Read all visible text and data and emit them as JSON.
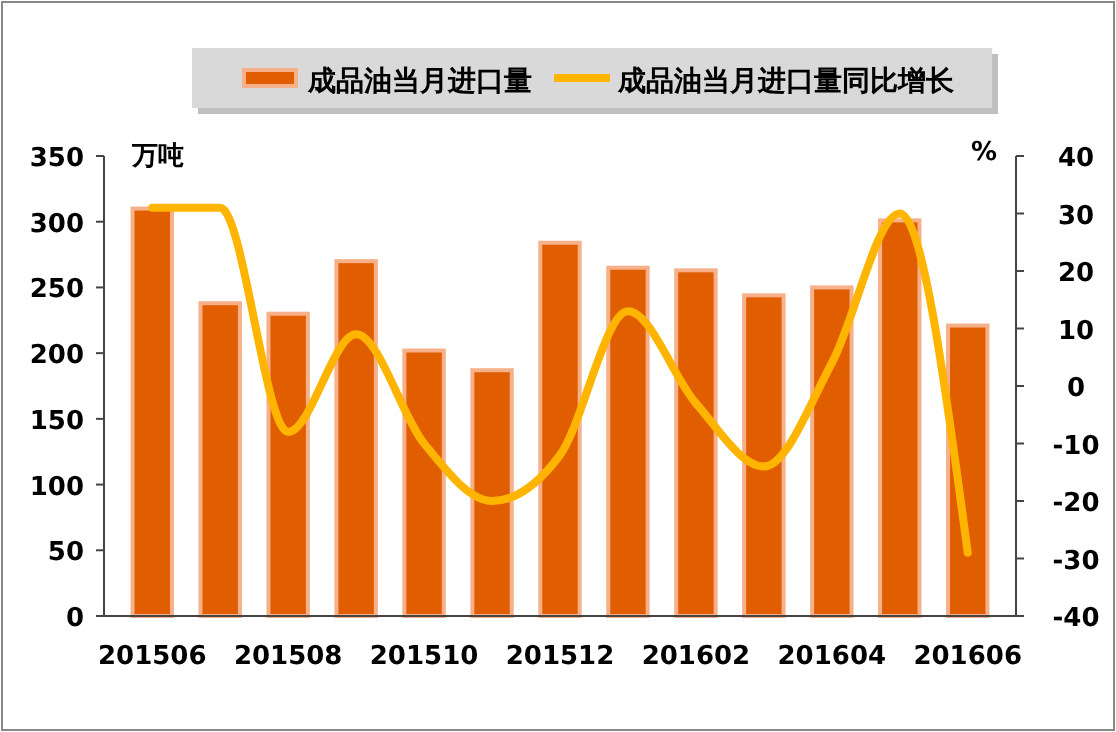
{
  "chart_data": {
    "type": "bar",
    "categories": [
      "201506",
      null,
      "201508",
      null,
      "201510",
      null,
      "201512",
      null,
      "201602",
      null,
      "201604",
      null,
      "201606"
    ],
    "ylabel": "万吨",
    "y2label": "%",
    "series": [
      {
        "name": "成品油当月进口量",
        "color": "#e05e00",
        "values": [
          310,
          238,
          230,
          270,
          202,
          187,
          284,
          265,
          263,
          244,
          250,
          301,
          221
        ]
      },
      {
        "name": "成品油当月进口量同比增长",
        "type": "line",
        "axis": "y2",
        "color": "#ffb400",
        "values": [
          31,
          31,
          -8,
          9,
          -10,
          -20,
          -12,
          13,
          -3,
          -14,
          4,
          30,
          -29
        ]
      }
    ],
    "ylim": [
      0,
      350
    ],
    "yticks": [
      0,
      50,
      100,
      150,
      200,
      250,
      300,
      350
    ],
    "y2lim": [
      -40,
      40
    ],
    "y2ticks": [
      -40,
      -30,
      -20,
      -10,
      0,
      10,
      20,
      30,
      40
    ],
    "legend": "top",
    "grid": false,
    "marker": "none",
    "line_style": "solid"
  }
}
